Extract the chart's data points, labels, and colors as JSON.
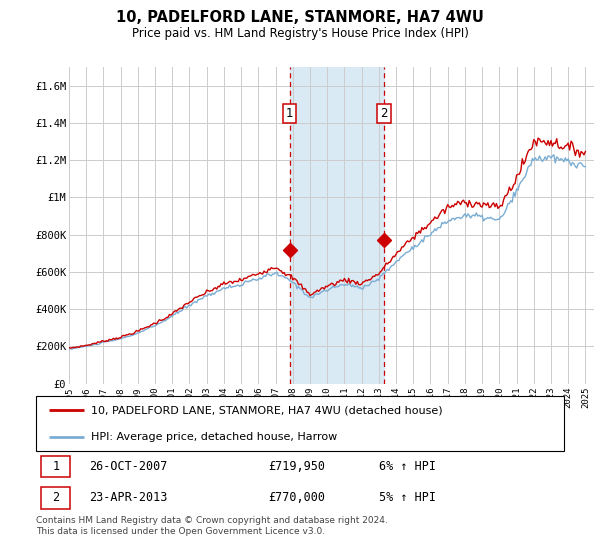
{
  "title": "10, PADELFORD LANE, STANMORE, HA7 4WU",
  "subtitle": "Price paid vs. HM Land Registry's House Price Index (HPI)",
  "legend_line1": "10, PADELFORD LANE, STANMORE, HA7 4WU (detached house)",
  "legend_line2": "HPI: Average price, detached house, Harrow",
  "footnote": "Contains HM Land Registry data © Crown copyright and database right 2024.\nThis data is licensed under the Open Government Licence v3.0.",
  "transaction1_date": "26-OCT-2007",
  "transaction1_price": "£719,950",
  "transaction1_hpi": "6% ↑ HPI",
  "transaction2_date": "23-APR-2013",
  "transaction2_price": "£770,000",
  "transaction2_hpi": "5% ↑ HPI",
  "transaction1_year": 2007.82,
  "transaction1_value": 719950,
  "transaction2_year": 2013.31,
  "transaction2_value": 770000,
  "highlight_x1": 2007.82,
  "highlight_x2": 2013.31,
  "ylim": [
    0,
    1700000
  ],
  "xlim_start": 1995.0,
  "xlim_end": 2025.5,
  "yticks": [
    0,
    200000,
    400000,
    600000,
    800000,
    1000000,
    1200000,
    1400000,
    1600000
  ],
  "ytick_labels": [
    "£0",
    "£200K",
    "£400K",
    "£600K",
    "£800K",
    "£1M",
    "£1.2M",
    "£1.4M",
    "£1.6M"
  ],
  "line_color_red": "#cc0000",
  "line_color_blue": "#7aadd4",
  "highlight_color": "#daeaf5",
  "grid_color": "#cccccc",
  "background_color": "#ffffff"
}
